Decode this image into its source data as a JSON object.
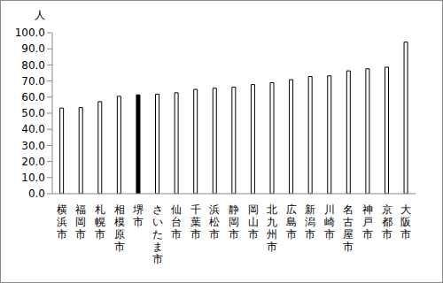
{
  "chart_data": {
    "type": "bar",
    "y_label": "人",
    "categories": [
      "横浜市",
      "福岡市",
      "札幌市",
      "相模原市",
      "堺市",
      "さいたま市",
      "仙台市",
      "千葉市",
      "浜松市",
      "静岡市",
      "岡山市",
      "北九州市",
      "広島市",
      "新潟市",
      "川崎市",
      "名古屋市",
      "神戸市",
      "京都市",
      "大阪市"
    ],
    "values": [
      53.2,
      53.5,
      57.2,
      60.5,
      61.4,
      61.8,
      62.7,
      64.8,
      65.5,
      66.2,
      67.8,
      69.0,
      70.8,
      72.8,
      73.2,
      76.3,
      77.6,
      78.6,
      94.2
    ],
    "colors": [
      "#ffffff",
      "#ffffff",
      "#ffffff",
      "#ffffff",
      "#000000",
      "#ffffff",
      "#ffffff",
      "#ffffff",
      "#ffffff",
      "#ffffff",
      "#ffffff",
      "#ffffff",
      "#ffffff",
      "#ffffff",
      "#ffffff",
      "#ffffff",
      "#ffffff",
      "#ffffff",
      "#ffffff"
    ],
    "ylim": [
      0,
      100
    ],
    "yticks": [
      {
        "value": 0,
        "label": "0.0"
      },
      {
        "value": 10,
        "label": "10.0"
      },
      {
        "value": 20,
        "label": "20.0"
      },
      {
        "value": 30,
        "label": "30.0"
      },
      {
        "value": 40,
        "label": "40.0"
      },
      {
        "value": 50,
        "label": "50.0"
      },
      {
        "value": 60,
        "label": "60.0"
      },
      {
        "value": 70,
        "label": "70.0"
      },
      {
        "value": 80,
        "label": "80.0"
      },
      {
        "value": 90,
        "label": "90.0"
      },
      {
        "value": 100,
        "label": "100.0"
      }
    ],
    "grid": false
  }
}
